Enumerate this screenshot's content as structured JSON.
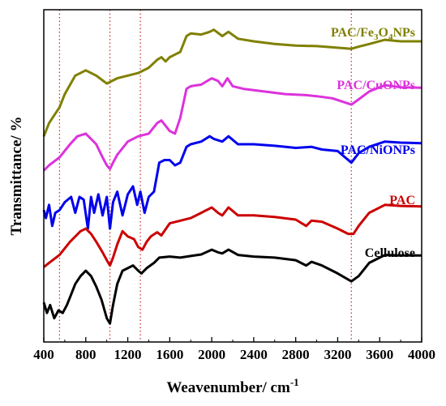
{
  "chart_data": {
    "type": "line",
    "title": "",
    "xlabel": "Weavenumber/ cm",
    "xlabel_superscript": "-1",
    "ylabel": "Transmittance/ %",
    "xlim": [
      400,
      4000
    ],
    "x_ticks": [
      400,
      800,
      1200,
      1600,
      2000,
      2400,
      2800,
      3200,
      3600,
      4000
    ],
    "y_ticks_shown": false,
    "grid": false,
    "reference_lines_x": [
      550,
      1030,
      1320,
      3330
    ],
    "series": [
      {
        "name": "PAC/Fe3O4NPs",
        "label_parts": [
          "PAC/Fe",
          "3",
          "O",
          "4",
          "NPs"
        ],
        "color": "#808000",
        "points": [
          [
            400,
            3.0
          ],
          [
            420,
            3.1
          ],
          [
            450,
            3.25
          ],
          [
            500,
            3.4
          ],
          [
            550,
            3.55
          ],
          [
            600,
            3.8
          ],
          [
            700,
            4.15
          ],
          [
            800,
            4.25
          ],
          [
            900,
            4.15
          ],
          [
            1000,
            4.0
          ],
          [
            1050,
            4.05
          ],
          [
            1100,
            4.1
          ],
          [
            1200,
            4.15
          ],
          [
            1300,
            4.2
          ],
          [
            1400,
            4.3
          ],
          [
            1480,
            4.45
          ],
          [
            1520,
            4.5
          ],
          [
            1560,
            4.42
          ],
          [
            1600,
            4.5
          ],
          [
            1650,
            4.55
          ],
          [
            1700,
            4.6
          ],
          [
            1760,
            4.9
          ],
          [
            1800,
            4.95
          ],
          [
            1900,
            4.93
          ],
          [
            1980,
            4.98
          ],
          [
            2020,
            5.02
          ],
          [
            2100,
            4.9
          ],
          [
            2160,
            4.98
          ],
          [
            2250,
            4.85
          ],
          [
            2400,
            4.8
          ],
          [
            2600,
            4.75
          ],
          [
            2800,
            4.72
          ],
          [
            3000,
            4.71
          ],
          [
            3200,
            4.68
          ],
          [
            3330,
            4.66
          ],
          [
            3400,
            4.7
          ],
          [
            3500,
            4.75
          ],
          [
            3650,
            4.83
          ],
          [
            3800,
            4.8
          ],
          [
            4000,
            4.8
          ]
        ]
      },
      {
        "name": "PAC/CuONPs",
        "label_parts": [
          "PAC/CuONPs"
        ],
        "color": "#dc32dc",
        "points": [
          [
            400,
            2.35
          ],
          [
            450,
            2.45
          ],
          [
            550,
            2.6
          ],
          [
            650,
            2.85
          ],
          [
            720,
            3.0
          ],
          [
            800,
            3.05
          ],
          [
            850,
            2.95
          ],
          [
            900,
            2.85
          ],
          [
            960,
            2.6
          ],
          [
            1000,
            2.45
          ],
          [
            1030,
            2.38
          ],
          [
            1060,
            2.5
          ],
          [
            1100,
            2.65
          ],
          [
            1200,
            2.9
          ],
          [
            1300,
            3.0
          ],
          [
            1400,
            3.05
          ],
          [
            1480,
            3.25
          ],
          [
            1520,
            3.3
          ],
          [
            1560,
            3.2
          ],
          [
            1600,
            3.1
          ],
          [
            1650,
            3.05
          ],
          [
            1700,
            3.35
          ],
          [
            1760,
            3.9
          ],
          [
            1800,
            3.95
          ],
          [
            1900,
            3.98
          ],
          [
            2000,
            4.1
          ],
          [
            2060,
            4.05
          ],
          [
            2100,
            3.95
          ],
          [
            2150,
            4.1
          ],
          [
            2200,
            3.95
          ],
          [
            2300,
            3.9
          ],
          [
            2500,
            3.85
          ],
          [
            2700,
            3.8
          ],
          [
            2900,
            3.78
          ],
          [
            3000,
            3.76
          ],
          [
            3150,
            3.72
          ],
          [
            3330,
            3.6
          ],
          [
            3400,
            3.7
          ],
          [
            3500,
            3.85
          ],
          [
            3650,
            3.97
          ],
          [
            3800,
            3.93
          ],
          [
            4000,
            3.92
          ]
        ]
      },
      {
        "name": "PAC/NiONPs",
        "label_parts": [
          "PAC/NiONPs"
        ],
        "color": "#0000ee",
        "points": [
          [
            400,
            1.6
          ],
          [
            420,
            1.45
          ],
          [
            450,
            1.7
          ],
          [
            480,
            1.3
          ],
          [
            510,
            1.55
          ],
          [
            550,
            1.6
          ],
          [
            600,
            1.75
          ],
          [
            660,
            1.85
          ],
          [
            700,
            1.55
          ],
          [
            740,
            1.85
          ],
          [
            780,
            1.8
          ],
          [
            820,
            1.25
          ],
          [
            850,
            1.85
          ],
          [
            880,
            1.55
          ],
          [
            920,
            1.9
          ],
          [
            960,
            1.5
          ],
          [
            1000,
            1.85
          ],
          [
            1030,
            1.25
          ],
          [
            1060,
            1.75
          ],
          [
            1100,
            1.95
          ],
          [
            1150,
            1.5
          ],
          [
            1200,
            1.9
          ],
          [
            1250,
            2.05
          ],
          [
            1290,
            1.7
          ],
          [
            1320,
            1.95
          ],
          [
            1360,
            1.55
          ],
          [
            1400,
            1.85
          ],
          [
            1450,
            1.95
          ],
          [
            1500,
            2.5
          ],
          [
            1550,
            2.55
          ],
          [
            1600,
            2.55
          ],
          [
            1650,
            2.45
          ],
          [
            1700,
            2.5
          ],
          [
            1760,
            2.8
          ],
          [
            1800,
            2.85
          ],
          [
            1900,
            2.9
          ],
          [
            1980,
            3.0
          ],
          [
            2020,
            2.95
          ],
          [
            2100,
            2.9
          ],
          [
            2160,
            3.0
          ],
          [
            2250,
            2.85
          ],
          [
            2400,
            2.85
          ],
          [
            2600,
            2.82
          ],
          [
            2800,
            2.78
          ],
          [
            2950,
            2.8
          ],
          [
            3050,
            2.75
          ],
          [
            3200,
            2.72
          ],
          [
            3330,
            2.5
          ],
          [
            3400,
            2.68
          ],
          [
            3500,
            2.8
          ],
          [
            3650,
            2.9
          ],
          [
            3800,
            2.88
          ],
          [
            4000,
            2.87
          ]
        ]
      },
      {
        "name": "PAC",
        "label_parts": [
          "PAC"
        ],
        "color": "#cc0000",
        "points": [
          [
            400,
            0.52
          ],
          [
            450,
            0.6
          ],
          [
            550,
            0.75
          ],
          [
            650,
            1.0
          ],
          [
            750,
            1.2
          ],
          [
            800,
            1.25
          ],
          [
            850,
            1.15
          ],
          [
            900,
            1.0
          ],
          [
            960,
            0.8
          ],
          [
            1000,
            0.65
          ],
          [
            1030,
            0.55
          ],
          [
            1060,
            0.7
          ],
          [
            1100,
            0.95
          ],
          [
            1150,
            1.2
          ],
          [
            1200,
            1.1
          ],
          [
            1260,
            1.05
          ],
          [
            1300,
            0.9
          ],
          [
            1340,
            0.85
          ],
          [
            1380,
            1.0
          ],
          [
            1420,
            1.1
          ],
          [
            1480,
            1.18
          ],
          [
            1520,
            1.12
          ],
          [
            1600,
            1.35
          ],
          [
            1700,
            1.4
          ],
          [
            1800,
            1.45
          ],
          [
            1900,
            1.55
          ],
          [
            2000,
            1.65
          ],
          [
            2060,
            1.55
          ],
          [
            2100,
            1.5
          ],
          [
            2160,
            1.65
          ],
          [
            2250,
            1.5
          ],
          [
            2400,
            1.5
          ],
          [
            2600,
            1.47
          ],
          [
            2800,
            1.42
          ],
          [
            2900,
            1.3
          ],
          [
            2950,
            1.4
          ],
          [
            3050,
            1.38
          ],
          [
            3200,
            1.25
          ],
          [
            3300,
            1.15
          ],
          [
            3350,
            1.15
          ],
          [
            3400,
            1.3
          ],
          [
            3500,
            1.55
          ],
          [
            3650,
            1.7
          ],
          [
            3800,
            1.68
          ],
          [
            4000,
            1.67
          ]
        ]
      },
      {
        "name": "Cellulose",
        "label_parts": [
          "Cellulose"
        ],
        "color": "#000000",
        "points": [
          [
            400,
            -0.15
          ],
          [
            430,
            -0.35
          ],
          [
            460,
            -0.2
          ],
          [
            500,
            -0.45
          ],
          [
            540,
            -0.3
          ],
          [
            580,
            -0.35
          ],
          [
            620,
            -0.2
          ],
          [
            660,
            0.0
          ],
          [
            700,
            0.2
          ],
          [
            750,
            0.35
          ],
          [
            800,
            0.45
          ],
          [
            850,
            0.35
          ],
          [
            900,
            0.15
          ],
          [
            950,
            -0.1
          ],
          [
            1000,
            -0.45
          ],
          [
            1030,
            -0.55
          ],
          [
            1060,
            -0.2
          ],
          [
            1100,
            0.2
          ],
          [
            1150,
            0.45
          ],
          [
            1200,
            0.5
          ],
          [
            1250,
            0.55
          ],
          [
            1300,
            0.45
          ],
          [
            1330,
            0.4
          ],
          [
            1380,
            0.5
          ],
          [
            1450,
            0.6
          ],
          [
            1500,
            0.7
          ],
          [
            1600,
            0.72
          ],
          [
            1700,
            0.7
          ],
          [
            1800,
            0.73
          ],
          [
            1900,
            0.76
          ],
          [
            2000,
            0.85
          ],
          [
            2060,
            0.8
          ],
          [
            2100,
            0.78
          ],
          [
            2160,
            0.85
          ],
          [
            2250,
            0.75
          ],
          [
            2400,
            0.72
          ],
          [
            2600,
            0.7
          ],
          [
            2800,
            0.65
          ],
          [
            2900,
            0.55
          ],
          [
            2950,
            0.62
          ],
          [
            3050,
            0.55
          ],
          [
            3200,
            0.4
          ],
          [
            3330,
            0.25
          ],
          [
            3400,
            0.35
          ],
          [
            3500,
            0.6
          ],
          [
            3650,
            0.75
          ],
          [
            3800,
            0.74
          ],
          [
            4000,
            0.74
          ]
        ]
      }
    ]
  },
  "colors": {
    "reference_line": "#cc3333",
    "axis": "#000000"
  }
}
